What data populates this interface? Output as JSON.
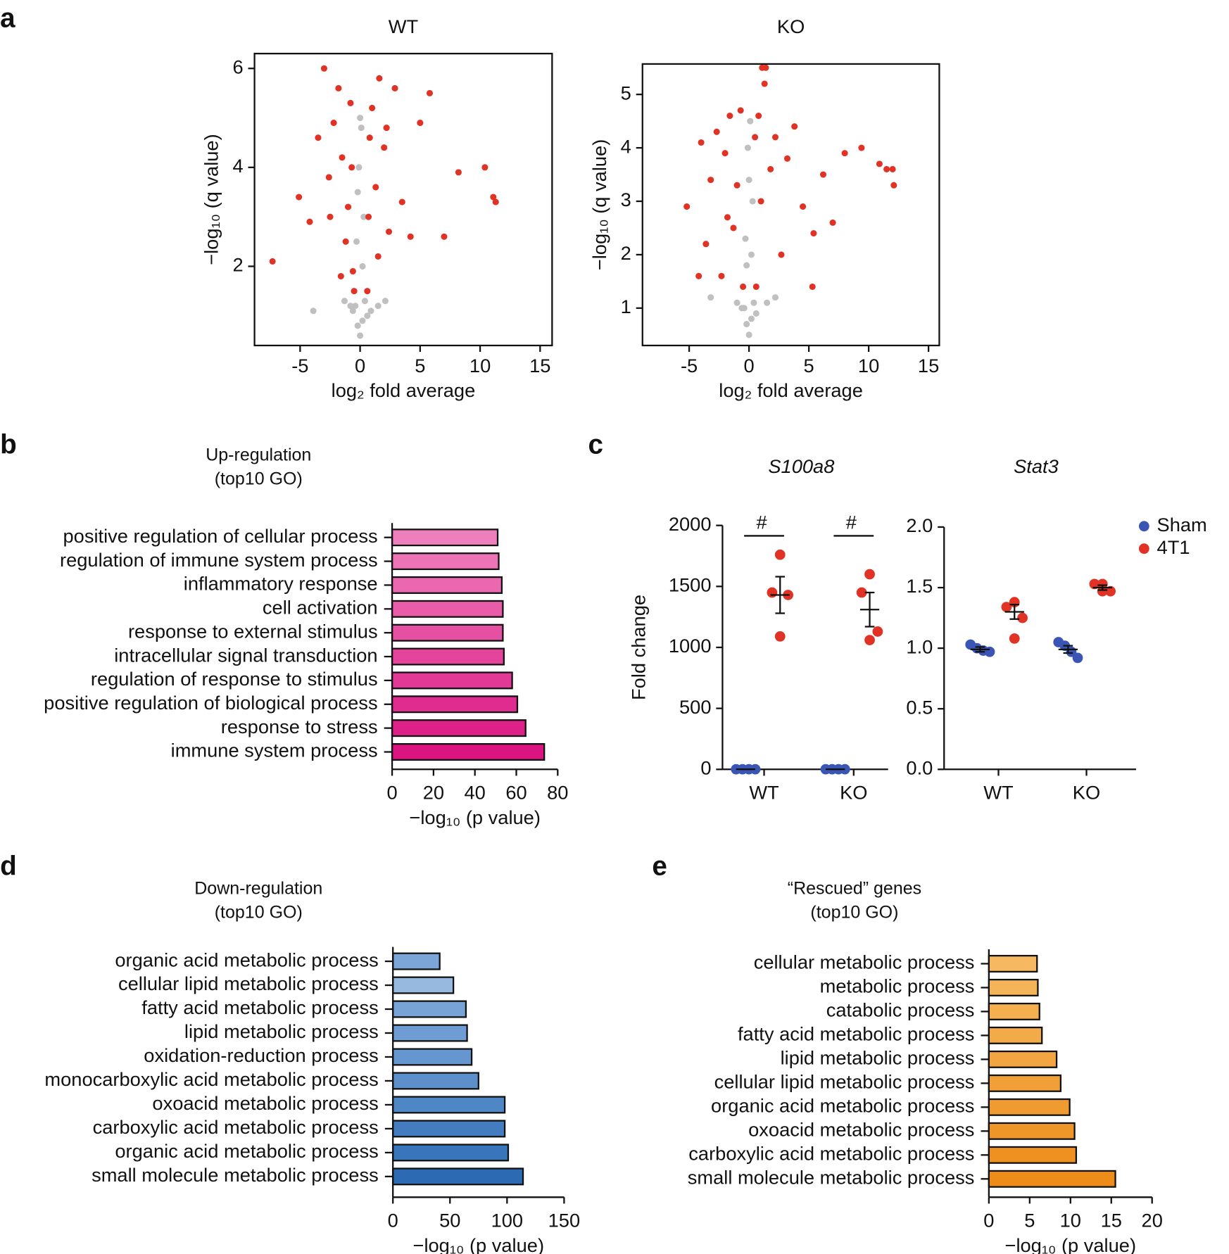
{
  "chart_data": [
    {
      "type": "scatter",
      "panel": "a",
      "title": "WT",
      "xlabel": "log₂ fold average",
      "ylabel": "−log₁₀ (q value)",
      "xlim": [
        -8.8,
        16
      ],
      "ylim": [
        0.4,
        6.3
      ],
      "xticks": [
        -5,
        0,
        5,
        10,
        15
      ],
      "yticks": [
        2,
        4,
        6
      ],
      "series": [
        {
          "color": "#c0c0c0",
          "x": [
            -0.4,
            -0.2,
            0,
            0.2,
            0.4,
            -0.3,
            0.3,
            -0.1,
            0.1,
            -0.6,
            0.6,
            -0.2,
            0.2,
            0,
            -3.9,
            2.1,
            1.5,
            -1.3,
            0.9,
            -0.8
          ],
          "y": [
            1.2,
            0.8,
            0.6,
            0.9,
            1.3,
            2.5,
            3.0,
            4.0,
            4.8,
            1.1,
            1.0,
            3.5,
            2.0,
            5.0,
            1.1,
            1.3,
            1.2,
            1.3,
            1.1,
            1.2
          ]
        },
        {
          "color": "#e03325",
          "x": [
            -7.3,
            -5.1,
            -4.2,
            -3.5,
            -3.0,
            -2.6,
            -2.2,
            -1.8,
            -1.5,
            -1.2,
            -1.0,
            -0.8,
            -0.6,
            -0.5,
            0.6,
            0.8,
            1.0,
            1.3,
            1.6,
            2.0,
            2.4,
            2.9,
            3.5,
            4.2,
            5.0,
            5.8,
            7.0,
            8.2,
            10.4,
            11.3,
            11.1,
            -2.5,
            -1.6,
            -0.7,
            0.7,
            1.5,
            2.2
          ],
          "y": [
            2.1,
            3.4,
            2.9,
            4.6,
            6.0,
            3.8,
            4.9,
            5.6,
            4.2,
            2.5,
            3.2,
            5.3,
            1.9,
            1.5,
            1.5,
            4.6,
            5.2,
            3.6,
            5.8,
            4.4,
            2.7,
            5.6,
            3.3,
            2.6,
            4.9,
            5.5,
            2.6,
            3.9,
            4.0,
            3.3,
            3.4,
            3.0,
            1.8,
            4.0,
            3.0,
            2.2,
            4.8
          ]
        }
      ]
    },
    {
      "type": "scatter",
      "title": "KO",
      "xlabel": "log₂ fold average",
      "ylabel": "−log₁₀ (q value)",
      "xlim": [
        -8.9,
        15.9
      ],
      "ylim": [
        0.3,
        5.57
      ],
      "xticks": [
        -5,
        0,
        5,
        10,
        15
      ],
      "yticks": [
        1,
        2,
        3,
        4,
        5
      ],
      "series": [
        {
          "color": "#c0c0c0",
          "x": [
            -0.4,
            -0.2,
            0,
            0.2,
            0.4,
            -0.3,
            0.3,
            -0.1,
            0.1,
            -0.6,
            0.6,
            0,
            -3.2,
            2.2,
            -1.0,
            1.5,
            -0.2,
            0.2
          ],
          "y": [
            1.0,
            0.7,
            0.5,
            0.8,
            1.1,
            2.3,
            3.0,
            4.0,
            4.5,
            1.0,
            0.9,
            3.4,
            1.2,
            1.2,
            1.1,
            1.1,
            1.8,
            2.0
          ]
        },
        {
          "color": "#e03325",
          "x": [
            -5.2,
            -4.0,
            -3.6,
            -3.2,
            -2.7,
            -2.3,
            -2.0,
            -1.6,
            -1.3,
            -1.0,
            -0.7,
            -0.5,
            0.6,
            0.8,
            1.1,
            1.4,
            1.8,
            2.2,
            2.7,
            3.2,
            3.8,
            4.5,
            5.3,
            6.2,
            7.0,
            8.0,
            9.4,
            10.9,
            11.5,
            12.0,
            12.1,
            0.5,
            1.0,
            1.3,
            -4.2,
            -1.8,
            5.4
          ],
          "y": [
            2.9,
            4.1,
            2.2,
            3.4,
            4.3,
            1.6,
            3.9,
            4.6,
            2.5,
            3.3,
            4.7,
            1.4,
            1.4,
            4.6,
            5.5,
            5.5,
            3.6,
            4.2,
            2.0,
            3.8,
            4.4,
            2.9,
            1.4,
            3.5,
            2.6,
            3.9,
            4.0,
            3.7,
            3.6,
            3.6,
            3.3,
            4.2,
            3.0,
            5.2,
            1.6,
            2.7,
            2.4
          ]
        }
      ]
    },
    {
      "type": "barh",
      "panel": "b",
      "title": [
        "Up-regulation",
        "(top10 GO)"
      ],
      "xlabel": "−log₁₀ (p value)",
      "xlim": [
        0,
        80
      ],
      "xticks": [
        0,
        20,
        40,
        60,
        80
      ],
      "categories": [
        "positive regulation of cellular process",
        "regulation of immune system process",
        "inflammatory response",
        "cell activation",
        "response to external stimulus",
        "intracellular signal transduction",
        "regulation of response to stimulus",
        "positive regulation of biological process",
        "response to stress",
        "immune system process"
      ],
      "values": [
        51,
        51.5,
        53,
        53.5,
        53.5,
        54,
        58,
        60.5,
        64.5,
        73.5
      ],
      "colors": [
        "#ee7fbd",
        "#ec74b6",
        "#ea68b0",
        "#e85ca9",
        "#e650a3",
        "#e4449c",
        "#e23896",
        "#e02c8f",
        "#de2089",
        "#dc1482"
      ]
    },
    {
      "type": "dot",
      "panel": "c",
      "title": "S100a8",
      "ylabel": "Fold change",
      "ylim": [
        0,
        2000
      ],
      "yticks": [
        0,
        500,
        1000,
        1500,
        2000
      ],
      "categories": [
        "WT",
        "KO"
      ],
      "annotations": [
        "#",
        "#"
      ],
      "series": [
        {
          "color": "#3a55b4",
          "values": [
            [
              1,
              1,
              1,
              1
            ],
            [
              1,
              1,
              1,
              1
            ]
          ],
          "mean": [
            1,
            1
          ],
          "sem": [
            0,
            0
          ]
        },
        {
          "color": "#e03325",
          "values": [
            [
              1760,
              1450,
              1430,
              1090
            ],
            [
              1600,
              1450,
              1130,
              1060
            ]
          ],
          "mean": [
            1430,
            1310
          ],
          "sem": [
            150,
            140
          ]
        }
      ]
    },
    {
      "type": "dot",
      "title": "Stat3",
      "legend": "right",
      "ylim": [
        0,
        2.0
      ],
      "yticks": [
        {
          "value": 0,
          "label": "0.0"
        },
        {
          "value": 0.5,
          "label": "0.5"
        },
        {
          "value": 1,
          "label": "1.0"
        },
        {
          "value": 1.5,
          "label": "1.5"
        },
        {
          "value": 2,
          "label": "2.0"
        }
      ],
      "categories": [
        "WT",
        "KO"
      ],
      "series": [
        {
          "name": "Sham",
          "color": "#3a55b4",
          "values": [
            [
              1.03,
              1.0,
              0.98,
              0.97
            ],
            [
              1.05,
              1.02,
              0.97,
              0.92
            ]
          ],
          "mean": [
            0.99,
            0.99
          ],
          "sem": [
            0.02,
            0.03
          ]
        },
        {
          "name": "4T1",
          "color": "#e03325",
          "values": [
            [
              1.38,
              1.34,
              1.25,
              1.08
            ],
            [
              1.53,
              1.53,
              1.47,
              1.47
            ]
          ],
          "mean": [
            1.3,
            1.5
          ],
          "sem": [
            0.06,
            0.02
          ]
        }
      ]
    },
    {
      "type": "barh",
      "panel": "d",
      "title": [
        "Down-regulation",
        "(top10 GO)"
      ],
      "xlabel": "−log₁₀ (p value)",
      "xlim": [
        0,
        150
      ],
      "xticks": [
        0,
        50,
        100,
        150
      ],
      "categories": [
        "organic acid metabolic process",
        "cellular lipid metabolic process",
        "fatty acid metabolic process",
        "lipid metabolic process",
        "oxidation-reduction process",
        "monocarboxylic acid metabolic process",
        "oxoacid metabolic process",
        "carboxylic acid metabolic process",
        "organic acid metabolic process",
        "small molecule metabolic process"
      ],
      "values": [
        41,
        53,
        64,
        65,
        69,
        75,
        98,
        98,
        101,
        114
      ],
      "colors": [
        "#7da6d8",
        "#97b9e0",
        "#78a3d6",
        "#6f9cd2",
        "#6696cf",
        "#5d8fcb",
        "#4f86c6",
        "#437dc0",
        "#3875bb",
        "#2c6bb4"
      ]
    },
    {
      "type": "barh",
      "panel": "e",
      "title": [
        "“Rescued” genes",
        "(top10 GO)"
      ],
      "xlabel": "−log₁₀ (p value)",
      "xlim": [
        0,
        20
      ],
      "xticks": [
        0,
        5,
        10,
        15,
        20
      ],
      "categories": [
        "cellular metabolic process",
        "metabolic process",
        "catabolic process",
        "fatty acid metabolic process",
        "lipid metabolic process",
        "cellular lipid metabolic process",
        "organic acid metabolic process",
        "oxoacid metabolic process",
        "carboxylic acid metabolic process",
        "small molecule metabolic process"
      ],
      "values": [
        5.9,
        6.0,
        6.2,
        6.5,
        8.3,
        8.8,
        9.9,
        10.5,
        10.7,
        15.5
      ],
      "colors": [
        "#f6b860",
        "#f5b458",
        "#f4af50",
        "#f3aa48",
        "#f2a540",
        "#f1a038",
        "#f09b30",
        "#ef9628",
        "#ee9120",
        "#ed8c18"
      ]
    }
  ]
}
